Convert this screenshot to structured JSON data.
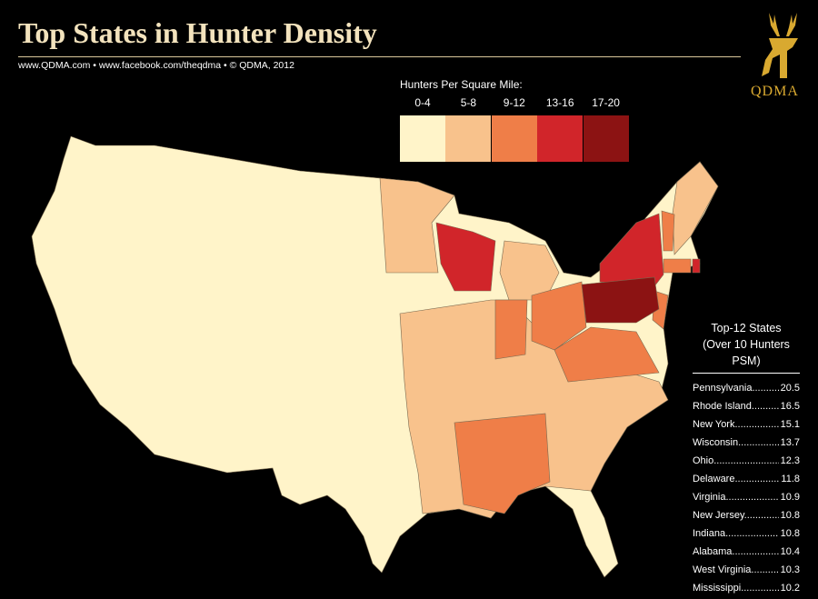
{
  "header": {
    "title": "Top States in Hunter Density",
    "subtitle": "www.QDMA.com  •  www.facebook.com/theqdma  •  © QDMA, 2012",
    "logo": "QDMA"
  },
  "legend": {
    "title": "Hunters Per Square Mile:",
    "items": [
      {
        "label": "0-4",
        "color": "#fff4c9"
      },
      {
        "label": "5-8",
        "color": "#f8c28c"
      },
      {
        "label": "9-12",
        "color": "#ef7e48"
      },
      {
        "label": "13-16",
        "color": "#d1252a"
      },
      {
        "label": "17-20",
        "color": "#8c1313"
      }
    ]
  },
  "top_list": {
    "title": "Top-12 States",
    "subtitle": "(Over 10 Hunters PSM)",
    "rows": [
      {
        "state": "Pennsylvania",
        "value": "20.5"
      },
      {
        "state": "Rhode Island",
        "value": "16.5"
      },
      {
        "state": "New York",
        "value": "15.1"
      },
      {
        "state": "Wisconsin",
        "value": "13.7"
      },
      {
        "state": "Ohio",
        "value": "12.3"
      },
      {
        "state": "Delaware",
        "value": "11.8"
      },
      {
        "state": "Virginia",
        "value": "10.9"
      },
      {
        "state": "New Jersey",
        "value": "10.8"
      },
      {
        "state": "Indiana",
        "value": "10.8"
      },
      {
        "state": "Alabama",
        "value": "10.4"
      },
      {
        "state": "West Virginia",
        "value": "10.3"
      },
      {
        "state": "Mississippi",
        "value": "10.2"
      }
    ]
  }
}
